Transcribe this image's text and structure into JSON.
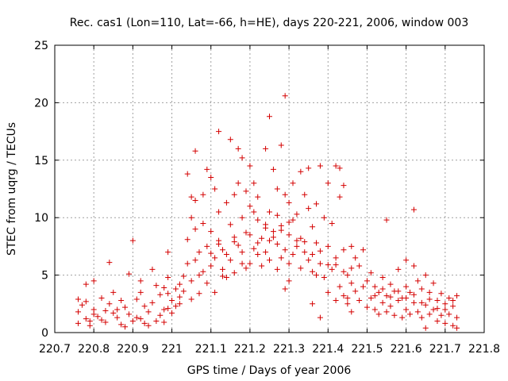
{
  "chart_data": {
    "type": "scatter",
    "title": "Rec. cas1 (Lon=110, Lat=-66, h=HE), days 220-221, 2006, window 003",
    "xlabel": "GPS time / Days of year 2006",
    "ylabel": "STEC from uqrg / TECUs",
    "xlim": [
      220.7,
      221.8
    ],
    "ylim": [
      0,
      25
    ],
    "xticks": [
      "220.7",
      "220.8",
      "220.9",
      "221",
      "221.1",
      "221.2",
      "221.3",
      "221.4",
      "221.5",
      "221.6",
      "221.7",
      "221.8"
    ],
    "yticks": [
      "0",
      "5",
      "10",
      "15",
      "20",
      "25"
    ],
    "grid": true,
    "marker": "plus",
    "color": "#d40000",
    "series": [
      {
        "points": [
          [
            220.76,
            2.9
          ],
          [
            220.77,
            2.4
          ],
          [
            220.76,
            1.8
          ],
          [
            220.78,
            1.2
          ],
          [
            220.76,
            0.8
          ],
          [
            220.79,
            0.6
          ],
          [
            220.78,
            4.2
          ],
          [
            220.8,
            4.5
          ],
          [
            220.8,
            2.0
          ],
          [
            220.81,
            1.4
          ],
          [
            220.82,
            1.1
          ],
          [
            220.83,
            0.9
          ],
          [
            220.82,
            3.0
          ],
          [
            220.84,
            2.5
          ],
          [
            220.85,
            1.7
          ],
          [
            220.86,
            1.3
          ],
          [
            220.84,
            6.1
          ],
          [
            220.87,
            0.7
          ],
          [
            220.88,
            2.2
          ],
          [
            220.89,
            5.1
          ],
          [
            220.89,
            1.6
          ],
          [
            220.9,
            1.0
          ],
          [
            220.9,
            8.0
          ],
          [
            220.91,
            2.9
          ],
          [
            220.92,
            3.5
          ],
          [
            220.92,
            1.2
          ],
          [
            220.93,
            0.8
          ],
          [
            220.94,
            1.8
          ],
          [
            220.95,
            2.6
          ],
          [
            220.95,
            5.5
          ],
          [
            220.96,
            1.0
          ],
          [
            220.97,
            3.3
          ],
          [
            220.97,
            1.5
          ],
          [
            220.98,
            2.0
          ],
          [
            220.98,
            0.9
          ],
          [
            220.99,
            4.8
          ],
          [
            220.99,
            7.0
          ],
          [
            220.99,
            3.4
          ],
          [
            221.0,
            2.8
          ],
          [
            221.0,
            1.7
          ],
          [
            220.8,
            1.6
          ],
          [
            220.86,
            2.0
          ],
          [
            220.93,
            2.3
          ],
          [
            220.78,
            2.7
          ],
          [
            220.88,
            0.5
          ],
          [
            220.96,
            4.1
          ],
          [
            220.83,
            1.9
          ],
          [
            220.91,
            1.3
          ],
          [
            220.98,
            3.9
          ],
          [
            220.85,
            3.5
          ],
          [
            220.94,
            0.6
          ],
          [
            220.79,
            1.0
          ],
          [
            220.87,
            2.8
          ],
          [
            220.92,
            4.5
          ],
          [
            220.99,
            2.1
          ],
          [
            221.01,
            2.3
          ],
          [
            221.01,
            3.8
          ],
          [
            221.02,
            4.2
          ],
          [
            221.02,
            2.5
          ],
          [
            221.03,
            3.6
          ],
          [
            221.03,
            4.9
          ],
          [
            221.04,
            6.0
          ],
          [
            221.04,
            13.8
          ],
          [
            221.04,
            8.1
          ],
          [
            221.05,
            11.8
          ],
          [
            221.05,
            10.0
          ],
          [
            221.05,
            4.5
          ],
          [
            221.06,
            11.5
          ],
          [
            221.06,
            9.0
          ],
          [
            221.06,
            15.8
          ],
          [
            221.07,
            7.0
          ],
          [
            221.07,
            5.0
          ],
          [
            221.07,
            3.4
          ],
          [
            221.08,
            9.5
          ],
          [
            221.08,
            12.0
          ],
          [
            221.09,
            14.2
          ],
          [
            221.09,
            7.5
          ],
          [
            221.09,
            4.3
          ],
          [
            221.1,
            13.5
          ],
          [
            221.1,
            8.8
          ],
          [
            221.1,
            5.8
          ],
          [
            221.11,
            12.5
          ],
          [
            221.11,
            6.5
          ],
          [
            221.11,
            3.5
          ],
          [
            221.12,
            17.5
          ],
          [
            221.12,
            10.5
          ],
          [
            221.12,
            8.0
          ],
          [
            221.13,
            7.2
          ],
          [
            221.13,
            5.5
          ],
          [
            221.14,
            11.3
          ],
          [
            221.14,
            4.8
          ],
          [
            221.15,
            16.8
          ],
          [
            221.15,
            9.4
          ],
          [
            221.15,
            6.3
          ],
          [
            221.16,
            12.0
          ],
          [
            221.16,
            8.3
          ],
          [
            221.16,
            5.2
          ],
          [
            221.17,
            16.0
          ],
          [
            221.17,
            13.0
          ],
          [
            221.17,
            7.6
          ],
          [
            221.18,
            15.2
          ],
          [
            221.18,
            10.0
          ],
          [
            221.18,
            6.0
          ],
          [
            221.19,
            12.3
          ],
          [
            221.19,
            8.7
          ],
          [
            221.19,
            5.6
          ],
          [
            221.2,
            14.5
          ],
          [
            221.2,
            11.0
          ],
          [
            221.21,
            10.5
          ],
          [
            221.21,
            7.3
          ],
          [
            221.21,
            13.0
          ],
          [
            221.22,
            9.8
          ],
          [
            221.22,
            6.8
          ],
          [
            221.23,
            8.2
          ],
          [
            221.23,
            5.8
          ],
          [
            221.24,
            16.0
          ],
          [
            221.24,
            9.4
          ],
          [
            221.24,
            7.0
          ],
          [
            221.25,
            18.8
          ],
          [
            221.25,
            10.5
          ],
          [
            221.25,
            6.3
          ],
          [
            221.26,
            14.2
          ],
          [
            221.26,
            8.8
          ],
          [
            221.27,
            12.5
          ],
          [
            221.27,
            7.7
          ],
          [
            221.27,
            5.5
          ],
          [
            221.28,
            16.3
          ],
          [
            221.28,
            9.3
          ],
          [
            221.28,
            6.5
          ],
          [
            221.29,
            20.6
          ],
          [
            221.29,
            12.0
          ],
          [
            221.29,
            7.2
          ],
          [
            221.3,
            11.3
          ],
          [
            221.3,
            8.5
          ],
          [
            221.3,
            4.5
          ],
          [
            221.31,
            13.0
          ],
          [
            221.31,
            9.8
          ],
          [
            221.31,
            6.8
          ],
          [
            221.32,
            10.3
          ],
          [
            221.32,
            7.5
          ],
          [
            221.33,
            14.0
          ],
          [
            221.33,
            8.2
          ],
          [
            221.33,
            5.6
          ],
          [
            221.34,
            12.0
          ],
          [
            221.34,
            7.0
          ],
          [
            221.35,
            14.3
          ],
          [
            221.35,
            10.8
          ],
          [
            221.35,
            6.3
          ],
          [
            221.36,
            9.2
          ],
          [
            221.36,
            5.3
          ],
          [
            221.36,
            2.5
          ],
          [
            221.37,
            11.2
          ],
          [
            221.37,
            7.8
          ],
          [
            221.38,
            14.5
          ],
          [
            221.38,
            6.0
          ],
          [
            221.38,
            1.3
          ],
          [
            221.39,
            10.0
          ],
          [
            221.39,
            4.8
          ],
          [
            221.4,
            13.0
          ],
          [
            221.4,
            7.5
          ],
          [
            221.4,
            3.5
          ],
          [
            221.41,
            9.5
          ],
          [
            221.41,
            5.5
          ],
          [
            221.42,
            14.5
          ],
          [
            221.42,
            6.5
          ],
          [
            221.42,
            2.8
          ],
          [
            221.43,
            11.8
          ],
          [
            221.43,
            14.3
          ],
          [
            221.43,
            4.0
          ],
          [
            221.44,
            12.8
          ],
          [
            221.44,
            7.2
          ],
          [
            221.44,
            3.2
          ],
          [
            221.45,
            5.0
          ],
          [
            221.45,
            2.5
          ],
          [
            221.46,
            7.5
          ],
          [
            221.46,
            4.3
          ],
          [
            221.46,
            1.8
          ],
          [
            221.47,
            6.5
          ],
          [
            221.47,
            3.6
          ],
          [
            221.48,
            5.8
          ],
          [
            221.48,
            2.8
          ],
          [
            221.49,
            7.2
          ],
          [
            221.49,
            4.0
          ],
          [
            221.22,
            7.8
          ],
          [
            221.26,
            8.3
          ],
          [
            221.18,
            7.0
          ],
          [
            221.32,
            8.0
          ],
          [
            221.14,
            6.8
          ],
          [
            221.36,
            6.8
          ],
          [
            221.1,
            6.9
          ],
          [
            221.4,
            5.9
          ],
          [
            221.08,
            5.3
          ],
          [
            221.44,
            5.3
          ],
          [
            221.2,
            8.5
          ],
          [
            221.28,
            8.9
          ],
          [
            221.24,
            9.1
          ],
          [
            221.16,
            7.9
          ],
          [
            221.34,
            7.9
          ],
          [
            221.12,
            7.7
          ],
          [
            221.38,
            7.1
          ],
          [
            221.06,
            6.3
          ],
          [
            221.42,
            5.9
          ],
          [
            221.02,
            3.1
          ],
          [
            221.46,
            5.6
          ],
          [
            221.3,
            9.6
          ],
          [
            221.22,
            11.8
          ],
          [
            221.27,
            10.2
          ],
          [
            221.2,
            6.0
          ],
          [
            221.3,
            6.0
          ],
          [
            221.25,
            8.0
          ],
          [
            221.13,
            4.9
          ],
          [
            221.37,
            5.0
          ],
          [
            221.05,
            2.9
          ],
          [
            221.45,
            3.0
          ],
          [
            221.29,
            3.8
          ],
          [
            221.5,
            4.5
          ],
          [
            221.5,
            2.2
          ],
          [
            221.51,
            5.2
          ],
          [
            221.51,
            3.0
          ],
          [
            221.52,
            4.0
          ],
          [
            221.52,
            2.0
          ],
          [
            221.53,
            3.5
          ],
          [
            221.53,
            1.6
          ],
          [
            221.54,
            4.8
          ],
          [
            221.54,
            2.6
          ],
          [
            221.55,
            3.2
          ],
          [
            221.55,
            1.8
          ],
          [
            221.55,
            9.8
          ],
          [
            221.56,
            4.2
          ],
          [
            221.56,
            2.3
          ],
          [
            221.57,
            3.6
          ],
          [
            221.57,
            1.5
          ],
          [
            221.58,
            5.5
          ],
          [
            221.58,
            2.8
          ],
          [
            221.59,
            3.0
          ],
          [
            221.59,
            1.3
          ],
          [
            221.6,
            6.3
          ],
          [
            221.6,
            4.0
          ],
          [
            221.6,
            2.0
          ],
          [
            221.61,
            3.5
          ],
          [
            221.61,
            1.6
          ],
          [
            221.62,
            10.7
          ],
          [
            221.62,
            5.8
          ],
          [
            221.62,
            2.6
          ],
          [
            221.63,
            4.5
          ],
          [
            221.63,
            1.8
          ],
          [
            221.64,
            3.8
          ],
          [
            221.64,
            1.3
          ],
          [
            221.65,
            5.0
          ],
          [
            221.65,
            2.4
          ],
          [
            221.65,
            0.4
          ],
          [
            221.66,
            3.5
          ],
          [
            221.66,
            1.6
          ],
          [
            221.67,
            4.3
          ],
          [
            221.67,
            2.0
          ],
          [
            221.68,
            2.8
          ],
          [
            221.68,
            1.0
          ],
          [
            221.69,
            3.4
          ],
          [
            221.69,
            1.5
          ],
          [
            221.7,
            2.5
          ],
          [
            221.7,
            0.8
          ],
          [
            221.71,
            3.0
          ],
          [
            221.71,
            1.6
          ],
          [
            221.72,
            2.3
          ],
          [
            221.72,
            0.6
          ],
          [
            221.73,
            3.2
          ],
          [
            221.73,
            1.3
          ],
          [
            221.73,
            0.4
          ],
          [
            221.72,
            2.8
          ],
          [
            221.7,
            2.0
          ],
          [
            221.66,
            2.9
          ],
          [
            221.58,
            3.6
          ],
          [
            221.54,
            3.8
          ],
          [
            221.62,
            3.3
          ],
          [
            221.68,
            2.1
          ],
          [
            221.52,
            3.2
          ],
          [
            221.6,
            3.0
          ],
          [
            221.64,
            2.6
          ],
          [
            221.56,
            3.1
          ]
        ]
      }
    ]
  }
}
